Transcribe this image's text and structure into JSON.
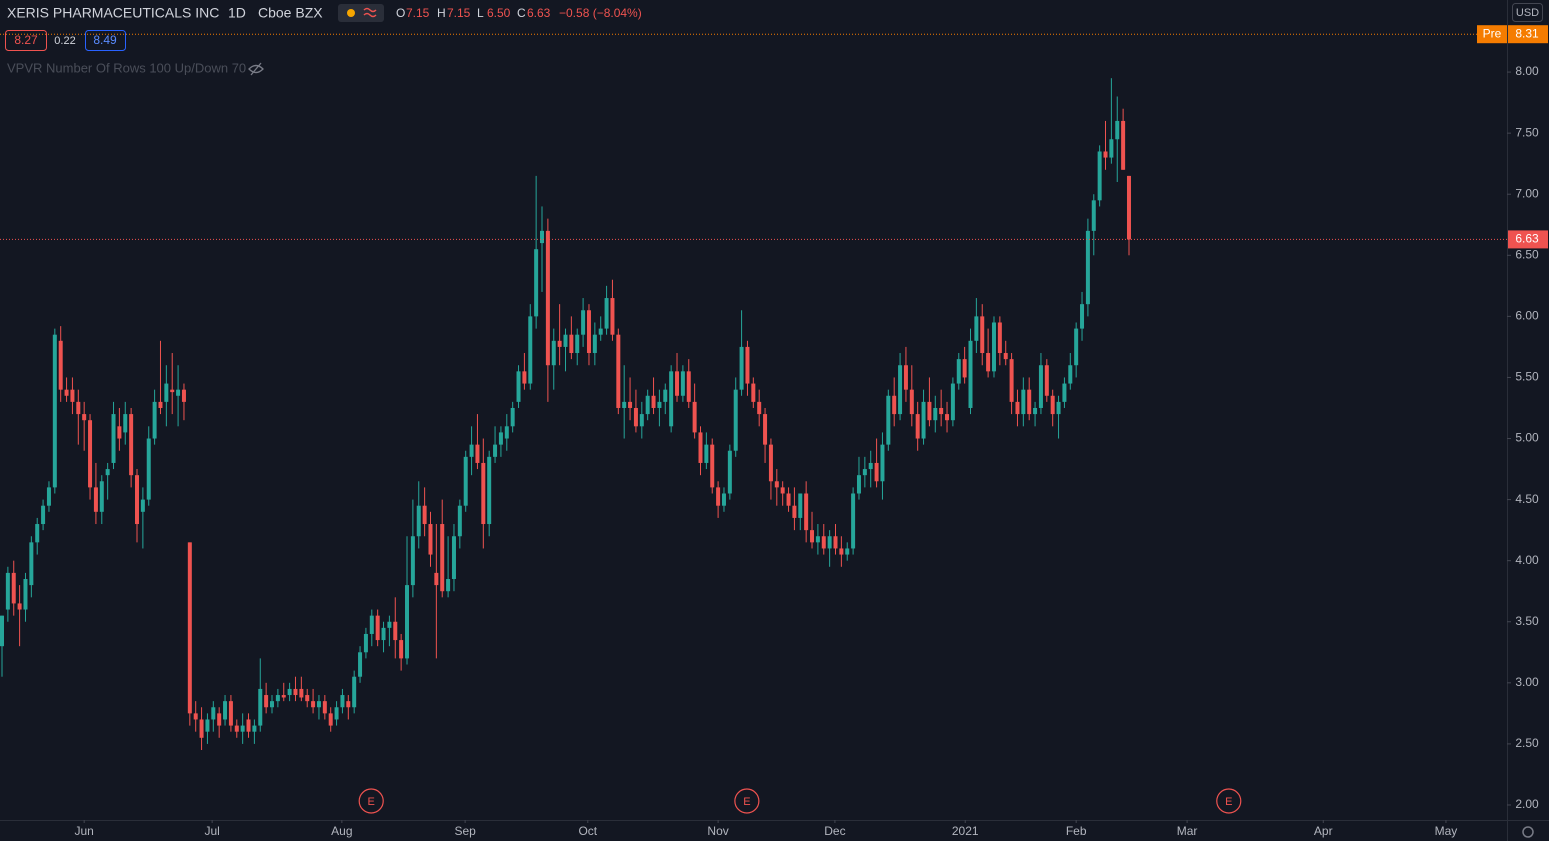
{
  "chart_data": {
    "type": "candlestick",
    "title": "XERIS PHARMACEUTICALS INC",
    "interval": "1D",
    "exchange": "Cboe BZX",
    "ohlc_labels": [
      "O",
      "H",
      "L",
      "C"
    ],
    "legend_values": [
      "7.15",
      "7.15",
      "6.50",
      "6.63"
    ],
    "change": "−0.58 (−8.04%)",
    "currency": "USD",
    "indicator": "VPVR Number Of Rows 100 Up/Down 70",
    "quote": {
      "bid": 8.27,
      "spread": 0.22,
      "ask": 8.49
    },
    "premarket": {
      "label": "Pre",
      "price": 8.31,
      "color": "#f57c00"
    },
    "up_color": "#26a69a",
    "down_color": "#ef5350",
    "ohlc": [
      [
        3.3,
        3.55,
        3.05,
        3.55
      ],
      [
        3.6,
        3.95,
        3.5,
        3.9
      ],
      [
        3.9,
        4.0,
        3.55,
        3.65
      ],
      [
        3.65,
        3.8,
        3.3,
        3.6
      ],
      [
        3.6,
        3.9,
        3.5,
        3.85
      ],
      [
        3.8,
        4.2,
        3.7,
        4.15
      ],
      [
        4.15,
        4.35,
        4.05,
        4.3
      ],
      [
        4.3,
        4.5,
        4.25,
        4.45
      ],
      [
        4.45,
        4.65,
        4.4,
        4.6
      ],
      [
        4.6,
        5.9,
        4.55,
        5.85
      ],
      [
        5.8,
        5.92,
        5.3,
        5.4
      ],
      [
        5.4,
        5.5,
        5.3,
        5.35
      ],
      [
        5.4,
        5.5,
        5.2,
        5.3
      ],
      [
        5.3,
        5.4,
        4.95,
        5.2
      ],
      [
        5.2,
        5.3,
        4.9,
        5.15
      ],
      [
        5.15,
        5.2,
        4.5,
        4.6
      ],
      [
        4.6,
        4.8,
        4.3,
        4.4
      ],
      [
        4.4,
        4.7,
        4.3,
        4.65
      ],
      [
        4.7,
        4.8,
        4.5,
        4.75
      ],
      [
        4.8,
        5.3,
        4.75,
        5.2
      ],
      [
        5.1,
        5.25,
        4.9,
        5.0
      ],
      [
        5.05,
        5.3,
        4.95,
        5.2
      ],
      [
        5.2,
        5.25,
        4.6,
        4.7
      ],
      [
        4.7,
        4.75,
        4.15,
        4.3
      ],
      [
        4.4,
        4.6,
        4.1,
        4.5
      ],
      [
        4.5,
        5.1,
        4.45,
        5.0
      ],
      [
        5.0,
        5.4,
        4.95,
        5.3
      ],
      [
        5.3,
        5.8,
        5.2,
        5.25
      ],
      [
        5.3,
        5.6,
        5.1,
        5.45
      ],
      [
        5.4,
        5.7,
        5.2,
        5.38
      ],
      [
        5.35,
        5.6,
        5.1,
        5.4
      ],
      [
        5.4,
        5.45,
        5.15,
        5.3
      ],
      [
        4.15,
        4.15,
        2.65,
        2.75
      ],
      [
        2.75,
        2.85,
        2.6,
        2.7
      ],
      [
        2.7,
        2.8,
        2.45,
        2.55
      ],
      [
        2.6,
        2.75,
        2.5,
        2.7
      ],
      [
        2.7,
        2.85,
        2.6,
        2.8
      ],
      [
        2.75,
        2.8,
        2.55,
        2.65
      ],
      [
        2.7,
        2.9,
        2.65,
        2.85
      ],
      [
        2.85,
        2.9,
        2.6,
        2.65
      ],
      [
        2.65,
        2.7,
        2.55,
        2.6
      ],
      [
        2.6,
        2.75,
        2.5,
        2.65
      ],
      [
        2.7,
        2.75,
        2.55,
        2.6
      ],
      [
        2.6,
        2.7,
        2.5,
        2.65
      ],
      [
        2.65,
        3.2,
        2.6,
        2.95
      ],
      [
        2.9,
        3.0,
        2.75,
        2.8
      ],
      [
        2.8,
        2.9,
        2.75,
        2.85
      ],
      [
        2.85,
        2.95,
        2.8,
        2.9
      ],
      [
        2.9,
        3.0,
        2.85,
        2.88
      ],
      [
        2.9,
        3.0,
        2.85,
        2.95
      ],
      [
        2.95,
        3.05,
        2.85,
        2.9
      ],
      [
        2.95,
        3.05,
        2.85,
        2.88
      ],
      [
        2.9,
        2.95,
        2.8,
        2.85
      ],
      [
        2.85,
        2.95,
        2.75,
        2.8
      ],
      [
        2.8,
        2.9,
        2.7,
        2.85
      ],
      [
        2.85,
        2.9,
        2.7,
        2.75
      ],
      [
        2.75,
        2.8,
        2.6,
        2.65
      ],
      [
        2.7,
        2.85,
        2.65,
        2.8
      ],
      [
        2.8,
        2.95,
        2.75,
        2.9
      ],
      [
        2.85,
        2.9,
        2.7,
        2.8
      ],
      [
        2.8,
        3.1,
        2.75,
        3.05
      ],
      [
        3.05,
        3.3,
        3.0,
        3.25
      ],
      [
        3.25,
        3.45,
        3.2,
        3.4
      ],
      [
        3.4,
        3.6,
        3.3,
        3.55
      ],
      [
        3.55,
        3.6,
        3.3,
        3.35
      ],
      [
        3.35,
        3.5,
        3.25,
        3.45
      ],
      [
        3.45,
        3.55,
        3.3,
        3.5
      ],
      [
        3.5,
        3.7,
        3.2,
        3.35
      ],
      [
        3.35,
        3.4,
        3.1,
        3.2
      ],
      [
        3.2,
        4.2,
        3.15,
        3.8
      ],
      [
        3.8,
        4.5,
        3.7,
        4.2
      ],
      [
        4.2,
        4.65,
        4.1,
        4.45
      ],
      [
        4.45,
        4.6,
        4.2,
        4.3
      ],
      [
        4.3,
        4.4,
        3.95,
        4.05
      ],
      [
        3.9,
        4.3,
        3.2,
        3.8
      ],
      [
        4.3,
        4.5,
        3.7,
        3.75
      ],
      [
        3.75,
        4.2,
        3.7,
        3.85
      ],
      [
        3.85,
        4.3,
        3.75,
        4.2
      ],
      [
        4.2,
        4.5,
        4.1,
        4.45
      ],
      [
        4.45,
        4.9,
        4.4,
        4.85
      ],
      [
        4.85,
        5.1,
        4.7,
        4.95
      ],
      [
        4.95,
        5.2,
        4.75,
        4.8
      ],
      [
        4.8,
        5.0,
        4.1,
        4.3
      ],
      [
        4.3,
        4.9,
        4.2,
        4.85
      ],
      [
        4.85,
        5.1,
        4.8,
        4.95
      ],
      [
        4.95,
        5.1,
        4.85,
        5.05
      ],
      [
        5.0,
        5.2,
        4.9,
        5.1
      ],
      [
        5.1,
        5.3,
        5.05,
        5.25
      ],
      [
        5.3,
        5.6,
        5.25,
        5.55
      ],
      [
        5.55,
        5.7,
        5.4,
        5.45
      ],
      [
        5.45,
        6.1,
        5.4,
        6.0
      ],
      [
        6.0,
        7.15,
        5.9,
        6.55
      ],
      [
        6.6,
        6.9,
        6.2,
        6.7
      ],
      [
        6.7,
        6.8,
        5.3,
        5.6
      ],
      [
        5.6,
        5.9,
        5.4,
        5.8
      ],
      [
        5.8,
        6.1,
        5.6,
        5.75
      ],
      [
        5.75,
        5.9,
        5.55,
        5.85
      ],
      [
        5.85,
        6.0,
        5.65,
        5.7
      ],
      [
        5.7,
        5.9,
        5.6,
        5.85
      ],
      [
        5.85,
        6.15,
        5.75,
        6.05
      ],
      [
        6.05,
        6.1,
        5.6,
        5.7
      ],
      [
        5.7,
        5.95,
        5.6,
        5.85
      ],
      [
        5.85,
        6.0,
        5.8,
        5.9
      ],
      [
        5.9,
        6.25,
        5.85,
        6.15
      ],
      [
        6.15,
        6.3,
        5.8,
        5.85
      ],
      [
        5.85,
        5.9,
        5.2,
        5.25
      ],
      [
        5.25,
        5.6,
        5.0,
        5.3
      ],
      [
        5.3,
        5.5,
        5.15,
        5.25
      ],
      [
        5.25,
        5.4,
        5.05,
        5.1
      ],
      [
        5.1,
        5.3,
        5.0,
        5.2
      ],
      [
        5.2,
        5.4,
        5.15,
        5.35
      ],
      [
        5.35,
        5.5,
        5.2,
        5.25
      ],
      [
        5.25,
        5.4,
        5.1,
        5.3
      ],
      [
        5.3,
        5.45,
        5.2,
        5.4
      ],
      [
        5.1,
        5.6,
        5.05,
        5.55
      ],
      [
        5.55,
        5.7,
        5.3,
        5.35
      ],
      [
        5.35,
        5.6,
        5.3,
        5.55
      ],
      [
        5.55,
        5.65,
        5.25,
        5.3
      ],
      [
        5.3,
        5.45,
        5.0,
        5.05
      ],
      [
        5.05,
        5.1,
        4.7,
        4.8
      ],
      [
        4.8,
        5.05,
        4.75,
        4.95
      ],
      [
        4.95,
        5.0,
        4.55,
        4.6
      ],
      [
        4.6,
        4.65,
        4.35,
        4.45
      ],
      [
        4.45,
        4.6,
        4.4,
        4.55
      ],
      [
        4.55,
        4.95,
        4.5,
        4.9
      ],
      [
        4.9,
        5.5,
        4.85,
        5.4
      ],
      [
        5.4,
        6.05,
        5.35,
        5.75
      ],
      [
        5.75,
        5.8,
        5.35,
        5.45
      ],
      [
        5.45,
        5.5,
        5.25,
        5.3
      ],
      [
        5.3,
        5.4,
        5.1,
        5.2
      ],
      [
        5.2,
        5.25,
        4.8,
        4.95
      ],
      [
        4.95,
        5.0,
        4.5,
        4.65
      ],
      [
        4.65,
        4.75,
        4.45,
        4.6
      ],
      [
        4.6,
        4.65,
        4.45,
        4.55
      ],
      [
        4.55,
        4.6,
        4.4,
        4.45
      ],
      [
        4.45,
        4.6,
        4.25,
        4.35
      ],
      [
        4.35,
        4.55,
        4.25,
        4.55
      ],
      [
        4.55,
        4.65,
        4.15,
        4.25
      ],
      [
        4.25,
        4.4,
        4.1,
        4.15
      ],
      [
        4.15,
        4.3,
        4.05,
        4.2
      ],
      [
        4.2,
        4.3,
        4.05,
        4.1
      ],
      [
        4.1,
        4.25,
        3.95,
        4.2
      ],
      [
        4.2,
        4.3,
        4.05,
        4.1
      ],
      [
        4.1,
        4.2,
        3.95,
        4.05
      ],
      [
        4.05,
        4.15,
        4.0,
        4.1
      ],
      [
        4.1,
        4.6,
        4.05,
        4.55
      ],
      [
        4.55,
        4.85,
        4.5,
        4.7
      ],
      [
        4.7,
        4.85,
        4.6,
        4.75
      ],
      [
        4.75,
        4.9,
        4.6,
        4.8
      ],
      [
        4.8,
        5.0,
        4.6,
        4.65
      ],
      [
        4.65,
        5.05,
        4.5,
        4.95
      ],
      [
        4.95,
        5.4,
        4.9,
        5.35
      ],
      [
        5.35,
        5.5,
        5.1,
        5.2
      ],
      [
        5.2,
        5.7,
        5.15,
        5.6
      ],
      [
        5.6,
        5.75,
        5.3,
        5.4
      ],
      [
        5.4,
        5.6,
        5.1,
        5.2
      ],
      [
        5.2,
        5.3,
        4.9,
        5.0
      ],
      [
        5.0,
        5.4,
        4.95,
        5.3
      ],
      [
        5.3,
        5.5,
        5.1,
        5.15
      ],
      [
        5.15,
        5.35,
        5.05,
        5.25
      ],
      [
        5.25,
        5.4,
        5.1,
        5.2
      ],
      [
        5.2,
        5.3,
        5.05,
        5.15
      ],
      [
        5.15,
        5.5,
        5.1,
        5.45
      ],
      [
        5.45,
        5.7,
        5.4,
        5.65
      ],
      [
        5.65,
        5.75,
        5.45,
        5.5
      ],
      [
        5.25,
        5.9,
        5.2,
        5.8
      ],
      [
        5.8,
        6.15,
        5.7,
        6.0
      ],
      [
        6.0,
        6.1,
        5.6,
        5.7
      ],
      [
        5.7,
        5.9,
        5.5,
        5.55
      ],
      [
        5.55,
        6.0,
        5.5,
        5.95
      ],
      [
        5.95,
        6.0,
        5.6,
        5.7
      ],
      [
        5.7,
        5.8,
        5.6,
        5.65
      ],
      [
        5.65,
        5.7,
        5.2,
        5.3
      ],
      [
        5.3,
        5.4,
        5.1,
        5.2
      ],
      [
        5.2,
        5.5,
        5.1,
        5.4
      ],
      [
        5.4,
        5.5,
        5.15,
        5.2
      ],
      [
        5.2,
        5.3,
        5.1,
        5.25
      ],
      [
        5.25,
        5.7,
        5.2,
        5.6
      ],
      [
        5.6,
        5.65,
        5.3,
        5.35
      ],
      [
        5.35,
        5.4,
        5.1,
        5.2
      ],
      [
        5.2,
        5.35,
        5.0,
        5.3
      ],
      [
        5.3,
        5.5,
        5.25,
        5.45
      ],
      [
        5.45,
        5.7,
        5.4,
        5.6
      ],
      [
        5.6,
        5.95,
        5.5,
        5.9
      ],
      [
        5.9,
        6.2,
        5.8,
        6.1
      ],
      [
        6.1,
        6.8,
        6.0,
        6.7
      ],
      [
        6.7,
        7.0,
        6.5,
        6.95
      ],
      [
        6.95,
        7.4,
        6.9,
        7.35
      ],
      [
        7.35,
        7.6,
        7.2,
        7.3
      ],
      [
        7.3,
        7.95,
        7.25,
        7.45
      ],
      [
        7.45,
        7.8,
        7.1,
        7.6
      ],
      [
        7.6,
        7.7,
        7.2,
        7.2
      ],
      [
        7.15,
        7.15,
        6.5,
        6.63
      ]
    ],
    "xlim": [
      -0.34,
      256.4
    ],
    "xticks": [
      {
        "value": 14,
        "label": "Jun"
      },
      {
        "value": 35.8,
        "label": "Jul"
      },
      {
        "value": 57.9,
        "label": "Aug"
      },
      {
        "value": 78.9,
        "label": "Sep"
      },
      {
        "value": 99.8,
        "label": "Oct"
      },
      {
        "value": 122,
        "label": "Nov"
      },
      {
        "value": 141.9,
        "label": "Dec"
      },
      {
        "value": 164.1,
        "label": "2021"
      },
      {
        "value": 183,
        "label": "Feb"
      },
      {
        "value": 201.9,
        "label": "Mar"
      },
      {
        "value": 225.1,
        "label": "Apr"
      },
      {
        "value": 246,
        "label": "May"
      }
    ],
    "ylim": [
      1.877,
      8.59
    ],
    "yticks": [
      {
        "value": 2,
        "label": "2.00"
      },
      {
        "value": 2.5,
        "label": "2.50"
      },
      {
        "value": 3,
        "label": "3.00"
      },
      {
        "value": 3.5,
        "label": "3.50"
      },
      {
        "value": 4,
        "label": "4.00"
      },
      {
        "value": 4.5,
        "label": "4.50"
      },
      {
        "value": 5,
        "label": "5.00"
      },
      {
        "value": 5.5,
        "label": "5.50"
      },
      {
        "value": 6,
        "label": "6.00"
      },
      {
        "value": 6.5,
        "label": "6.50"
      },
      {
        "value": 7,
        "label": "7.00"
      },
      {
        "value": 7.5,
        "label": "7.50"
      },
      {
        "value": 8,
        "label": "8.00"
      }
    ],
    "events": [
      {
        "x": 62.9,
        "label": "E"
      },
      {
        "x": 126.9,
        "label": "E"
      },
      {
        "x": 209,
        "label": "E"
      }
    ]
  }
}
